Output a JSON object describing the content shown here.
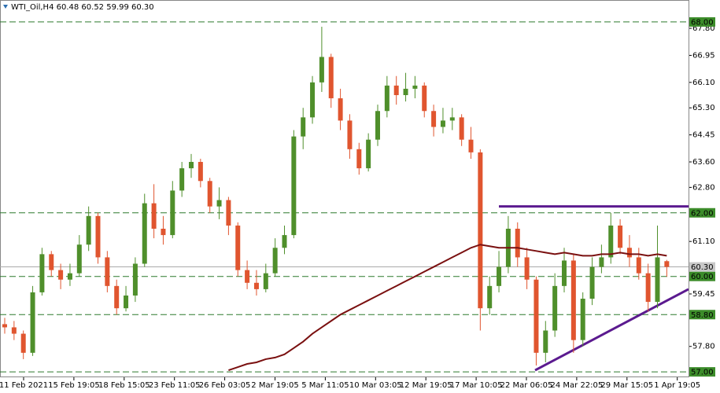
{
  "chart_data": {
    "type": "candlestick",
    "title": "WTI_Oil,H4  60.48 60.52 59.99 60.30",
    "up_color": "#4f8f2b",
    "down_color": "#e0552f",
    "ma_color": "#7a1010",
    "trendline_color": "#5b1a8f",
    "ylim": [
      56.83,
      68.69
    ],
    "yticks": [
      {
        "value": 67.8,
        "label": "67.80"
      },
      {
        "value": 66.95,
        "label": "66.95"
      },
      {
        "value": 66.1,
        "label": "66.10"
      },
      {
        "value": 65.3,
        "label": "65.30"
      },
      {
        "value": 64.45,
        "label": "64.45"
      },
      {
        "value": 63.6,
        "label": "63.60"
      },
      {
        "value": 62.8,
        "label": "62.80"
      },
      {
        "value": 61.1,
        "label": "61.10"
      },
      {
        "value": 59.45,
        "label": "59.45"
      },
      {
        "value": 57.8,
        "label": "57.80"
      }
    ],
    "levels": [
      {
        "value": 68,
        "label": "68.00"
      },
      {
        "value": 62,
        "label": "62.00"
      },
      {
        "value": 60,
        "label": "60.00"
      },
      {
        "value": 58.8,
        "label": "58.80"
      },
      {
        "value": 57,
        "label": "57.00"
      }
    ],
    "current_price": {
      "value": 60.3,
      "label": "60.30"
    },
    "x_labels": [
      "11 Feb 2021",
      "15 Feb 19:05",
      "18 Feb 15:05",
      "23 Feb 11:05",
      "26 Feb 03:05",
      "2 Mar 19:05",
      "5 Mar 11:05",
      "10 Mar 03:05",
      "12 Mar 19:05",
      "17 Mar 10:05",
      "22 Mar 06:05",
      "24 Mar 22:05",
      "29 Mar 15:05",
      "1 Apr 19:05"
    ],
    "candles": [
      [
        58.5,
        58.7,
        58.2,
        58.4
      ],
      [
        58.4,
        58.6,
        58.0,
        58.2
      ],
      [
        58.2,
        58.3,
        57.4,
        57.6
      ],
      [
        57.6,
        59.7,
        57.5,
        59.5
      ],
      [
        59.5,
        60.9,
        59.4,
        60.7
      ],
      [
        60.7,
        60.8,
        60.0,
        60.2
      ],
      [
        60.2,
        60.4,
        59.6,
        59.9
      ],
      [
        59.9,
        60.4,
        59.7,
        60.1
      ],
      [
        60.1,
        61.3,
        60.0,
        61.0
      ],
      [
        61.0,
        62.2,
        60.8,
        61.9
      ],
      [
        61.9,
        62.0,
        60.4,
        60.6
      ],
      [
        60.6,
        60.8,
        59.5,
        59.7
      ],
      [
        59.7,
        59.9,
        58.8,
        59.0
      ],
      [
        59.0,
        59.7,
        58.9,
        59.4
      ],
      [
        59.4,
        60.6,
        59.2,
        60.4
      ],
      [
        60.4,
        62.6,
        60.3,
        62.3
      ],
      [
        62.3,
        62.9,
        61.2,
        61.5
      ],
      [
        61.5,
        61.9,
        61.0,
        61.3
      ],
      [
        61.3,
        63.0,
        61.2,
        62.7
      ],
      [
        62.7,
        63.6,
        62.5,
        63.4
      ],
      [
        63.4,
        63.85,
        63.1,
        63.6
      ],
      [
        63.6,
        63.7,
        62.8,
        63.0
      ],
      [
        63.0,
        63.1,
        62.0,
        62.2
      ],
      [
        62.2,
        62.8,
        61.8,
        62.4
      ],
      [
        62.4,
        62.5,
        61.3,
        61.6
      ],
      [
        61.6,
        61.7,
        60.0,
        60.2
      ],
      [
        60.2,
        60.5,
        59.6,
        59.8
      ],
      [
        59.8,
        60.2,
        59.4,
        59.6
      ],
      [
        59.6,
        60.4,
        59.5,
        60.1
      ],
      [
        60.1,
        61.2,
        60.0,
        60.9
      ],
      [
        60.9,
        61.6,
        60.7,
        61.3
      ],
      [
        61.3,
        64.6,
        61.2,
        64.4
      ],
      [
        64.4,
        65.3,
        64.0,
        65.0
      ],
      [
        65.0,
        66.3,
        64.8,
        66.1
      ],
      [
        66.1,
        67.85,
        65.8,
        66.9
      ],
      [
        66.9,
        67.0,
        65.3,
        65.6
      ],
      [
        65.6,
        65.9,
        64.6,
        64.9
      ],
      [
        64.9,
        65.1,
        63.7,
        64.0
      ],
      [
        64.0,
        64.2,
        63.2,
        63.4
      ],
      [
        63.4,
        64.5,
        63.3,
        64.3
      ],
      [
        64.3,
        65.4,
        64.1,
        65.2
      ],
      [
        65.2,
        66.3,
        65.0,
        66.0
      ],
      [
        66.0,
        66.3,
        65.4,
        65.7
      ],
      [
        65.7,
        66.4,
        65.5,
        65.9
      ],
      [
        65.9,
        66.3,
        65.6,
        66.0
      ],
      [
        66.0,
        66.1,
        65.0,
        65.2
      ],
      [
        65.2,
        65.4,
        64.4,
        64.7
      ],
      [
        64.7,
        65.3,
        64.5,
        64.9
      ],
      [
        64.9,
        65.3,
        64.6,
        65.0
      ],
      [
        65.0,
        65.1,
        64.1,
        64.3
      ],
      [
        64.3,
        64.7,
        63.7,
        63.9
      ],
      [
        63.9,
        64.0,
        58.3,
        59.0
      ],
      [
        59.0,
        60.0,
        58.8,
        59.7
      ],
      [
        59.7,
        60.8,
        59.5,
        60.3
      ],
      [
        60.3,
        61.9,
        60.1,
        61.5
      ],
      [
        61.5,
        61.7,
        60.3,
        60.6
      ],
      [
        60.6,
        60.9,
        59.6,
        59.9
      ],
      [
        59.9,
        60.0,
        57.2,
        57.6
      ],
      [
        57.6,
        58.6,
        57.3,
        58.3
      ],
      [
        58.3,
        60.1,
        58.1,
        59.7
      ],
      [
        59.7,
        60.9,
        59.5,
        60.5
      ],
      [
        60.5,
        60.7,
        57.6,
        58.0
      ],
      [
        58.0,
        59.5,
        57.8,
        59.3
      ],
      [
        59.3,
        60.6,
        59.1,
        60.3
      ],
      [
        60.3,
        61.0,
        60.1,
        60.6
      ],
      [
        60.6,
        62.0,
        60.4,
        61.6
      ],
      [
        61.6,
        61.8,
        60.7,
        60.9
      ],
      [
        60.9,
        61.3,
        60.3,
        60.6
      ],
      [
        60.6,
        60.9,
        59.9,
        60.1
      ],
      [
        60.1,
        60.4,
        58.9,
        59.2
      ],
      [
        59.2,
        61.6,
        59.0,
        60.6
      ],
      [
        60.48,
        60.52,
        59.99,
        60.3
      ]
    ],
    "ma": [
      null,
      null,
      null,
      null,
      null,
      null,
      null,
      null,
      null,
      null,
      null,
      null,
      null,
      null,
      null,
      null,
      null,
      null,
      null,
      null,
      null,
      null,
      null,
      null,
      57.05,
      57.15,
      57.25,
      57.3,
      57.4,
      57.45,
      57.55,
      57.75,
      57.95,
      58.2,
      58.4,
      58.6,
      58.8,
      58.95,
      59.1,
      59.25,
      59.4,
      59.55,
      59.7,
      59.85,
      60.0,
      60.15,
      60.3,
      60.45,
      60.6,
      60.75,
      60.9,
      61.0,
      60.95,
      60.9,
      60.9,
      60.9,
      60.85,
      60.8,
      60.75,
      60.7,
      60.75,
      60.7,
      60.65,
      60.65,
      60.7,
      60.7,
      60.75,
      60.7,
      60.7,
      60.65,
      60.7,
      60.65
    ],
    "trendlines": [
      [
        62.2,
        62.2
      ],
      [
        57.05,
        59.6
      ]
    ]
  }
}
